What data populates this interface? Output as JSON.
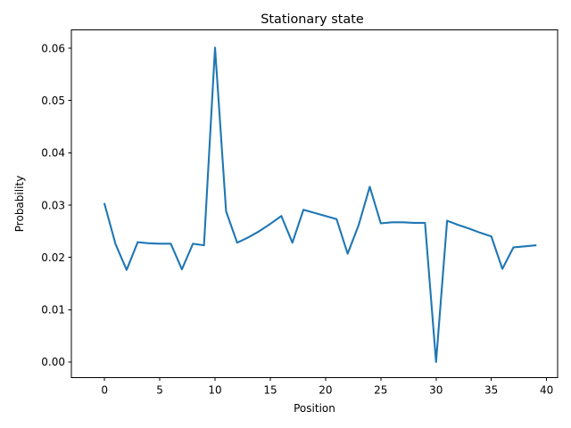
{
  "chart_data": {
    "type": "line",
    "title": "Stationary state",
    "xlabel": "Position",
    "ylabel": "Probability",
    "xlim": [
      -3,
      41
    ],
    "ylim": [
      -0.003,
      0.0635
    ],
    "xticks": [
      0,
      5,
      10,
      15,
      20,
      25,
      30,
      35,
      40
    ],
    "xtick_labels": [
      "0",
      "5",
      "10",
      "15",
      "20",
      "25",
      "30",
      "35",
      "40"
    ],
    "yticks": [
      0.0,
      0.01,
      0.02,
      0.03,
      0.04,
      0.05,
      0.06
    ],
    "ytick_labels": [
      "0.00",
      "0.01",
      "0.02",
      "0.03",
      "0.04",
      "0.05",
      "0.06"
    ],
    "grid": false,
    "series": [
      {
        "color": "#1f77b4",
        "x": [
          0,
          1,
          2,
          3,
          4,
          5,
          6,
          7,
          8,
          9,
          10,
          11,
          12,
          13,
          14,
          15,
          16,
          17,
          18,
          19,
          20,
          21,
          22,
          23,
          24,
          25,
          26,
          27,
          28,
          29,
          30,
          31,
          32,
          33,
          34,
          35,
          36,
          37,
          38,
          39
        ],
        "y": [
          0.0302,
          0.0225,
          0.0176,
          0.0229,
          0.0227,
          0.0226,
          0.0226,
          0.0177,
          0.0226,
          0.0223,
          0.0601,
          0.0288,
          0.0228,
          0.0238,
          0.025,
          0.0264,
          0.0279,
          0.0228,
          0.0291,
          0.0285,
          0.0279,
          0.0273,
          0.0207,
          0.0262,
          0.0335,
          0.0265,
          0.0267,
          0.0267,
          0.0266,
          0.0266,
          0.0,
          0.027,
          0.0262,
          0.0255,
          0.0247,
          0.024,
          0.0178,
          0.0219,
          0.0221,
          0.0223
        ]
      }
    ]
  }
}
